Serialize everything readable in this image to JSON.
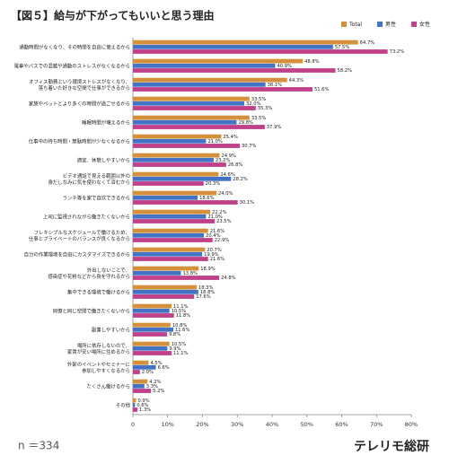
{
  "chart_data": {
    "type": "bar",
    "orientation": "horizontal",
    "title": "【図５】給与が下がってもいいと思う理由",
    "note": "n ＝334",
    "brand": "テレリモ総研",
    "categories": [
      "通勤時間がなくなり、その時間を自由に使えるから",
      "電車やバスでの混雑や通勤のストレスがなくなるから",
      "オフィス勤務という環境ストレスがなくなり、\n落ち着いた好きな空間で仕事ができるから",
      "家族やペットとより多くの時間が過ごせるから",
      "睡眠時間が増えるから",
      "仕事中の待ち時間・無駄時間が少なくなるから",
      "適宜、休憩しやすいから",
      "ビデオ通話で見える範囲以外の\n身だしなみに気を使わなくて済むから",
      "ランチ等を家で自炊できるから",
      "上司に監視されながら働きたくないから",
      "フレキシブルなスケジュールで働けるため、\n仕事とプライベートのバランスが良くなるから",
      "自分の作業環境を自由にカスタマイズできるから",
      "外出しないことで、\n感染症や花粉などから身を守れるから",
      "集中できる環境で働けるから",
      "同僚と同じ空間で働きたくないから",
      "副業しやすいから",
      "場所に依存しないので、\n家賃が安い場所に住めるから",
      "外部のイベントやセミナーに\n参加しやすくなるから",
      "たくさん働けるから",
      "その他"
    ],
    "series": [
      {
        "name": "Total",
        "color": "#d4903a",
        "values": [
          64.7,
          48.8,
          44.3,
          33.5,
          33.5,
          25.4,
          24.9,
          24.6,
          24.0,
          22.2,
          21.6,
          20.7,
          18.9,
          18.3,
          11.1,
          10.8,
          10.5,
          4.5,
          4.2,
          0.9
        ],
        "value_labels": [
          "64.7%",
          "48.8%",
          "44.3%",
          "33.5%",
          "33.5%",
          "25.4%",
          "24.9%",
          "24.6%",
          "24.0%",
          "22.2%",
          "21.6%",
          "20.7%",
          "18.9%",
          "18.3%",
          "11.1%",
          "10.8%",
          "10.5%",
          "4.5%",
          "4.2%",
          "0.9%"
        ]
      },
      {
        "name": "男性",
        "color": "#4472c4",
        "values": [
          57.5,
          40.9,
          38.1,
          32.0,
          29.8,
          21.0,
          23.2,
          28.2,
          18.6,
          21.0,
          20.4,
          19.9,
          13.8,
          18.8,
          10.5,
          11.6,
          9.9,
          6.6,
          3.3,
          0.6
        ],
        "value_labels": [
          "57.5%",
          "40.9%",
          "38.1%",
          "32.0%",
          "29.8%",
          "21.0%",
          "23.2%",
          "28.2%",
          "18.6%",
          "21.0%",
          "20.4%",
          "19.9%",
          "13.8%",
          "18.8%",
          "10.5%",
          "11.6%",
          "9.9%",
          "6.6%",
          "3.3%",
          "0.6%"
        ]
      },
      {
        "name": "女性",
        "color": "#c0408a",
        "values": [
          73.2,
          58.2,
          51.6,
          35.3,
          37.9,
          30.7,
          26.8,
          20.3,
          30.1,
          23.5,
          22.9,
          21.6,
          24.8,
          17.6,
          11.8,
          9.8,
          11.1,
          2.0,
          5.2,
          1.3
        ],
        "value_labels": [
          "73.2%",
          "58.2%",
          "51.6%",
          "35.3%",
          "37.9%",
          "30.7%",
          "26.8%",
          "20.3%",
          "30.1%",
          "23.5%",
          "22.9%",
          "21.6%",
          "24.8%",
          "17.6%",
          "11.8%",
          "9.8%",
          "11.1%",
          "2.0%",
          "5.2%",
          "1.3%"
        ]
      }
    ],
    "xlim": [
      0,
      80
    ],
    "xticks": [
      0,
      {
        "value": 10,
        "label": "10%"
      },
      {
        "value": 20,
        "label": "20%"
      },
      {
        "value": 30,
        "label": "30%"
      },
      {
        "value": 40,
        "label": "40%"
      },
      {
        "value": 50,
        "label": "50%"
      },
      {
        "value": 60,
        "label": "60%"
      },
      {
        "value": 70,
        "label": "70%"
      },
      {
        "value": 80,
        "label": "80%"
      }
    ],
    "grid": false,
    "legend": "top-right"
  }
}
